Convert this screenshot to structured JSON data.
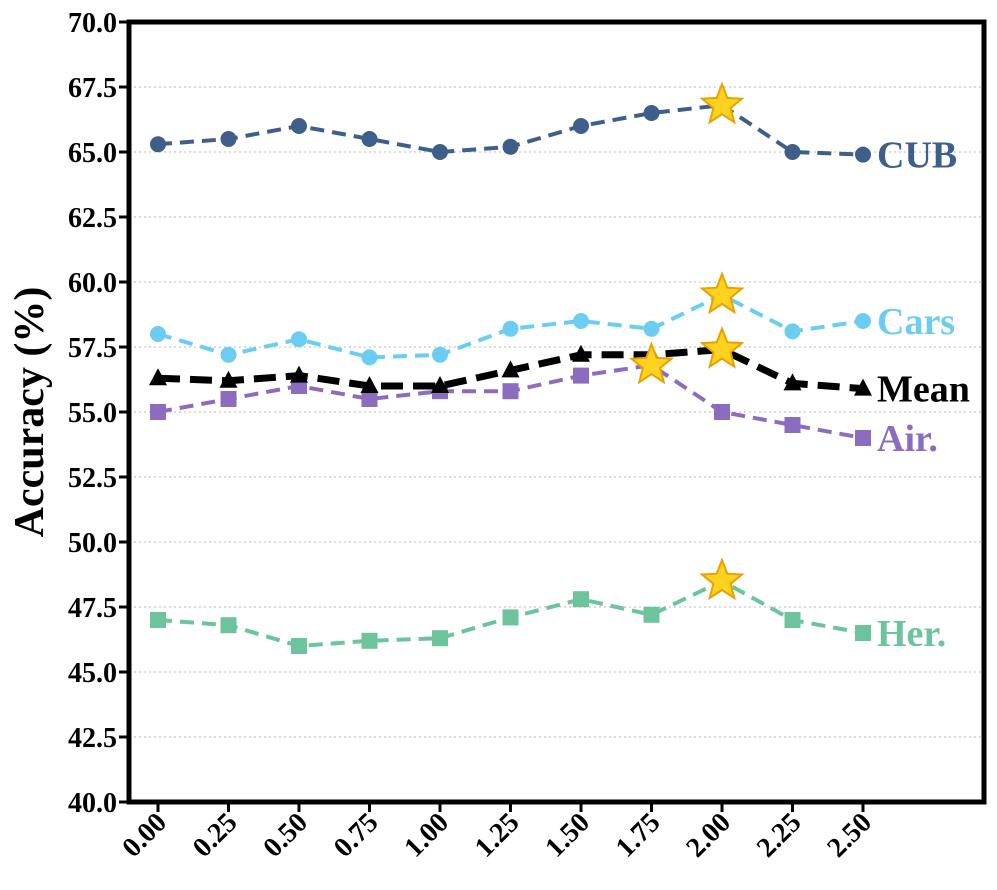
{
  "chart_data": {
    "type": "line",
    "title": "",
    "xlabel": "",
    "ylabel": "Accuracy (%)",
    "ylim": [
      40.0,
      70.0
    ],
    "yticks": [
      "40.0",
      "42.5",
      "45.0",
      "47.5",
      "50.0",
      "52.5",
      "55.0",
      "57.5",
      "60.0",
      "62.5",
      "65.0",
      "67.5",
      "70.0"
    ],
    "x": [
      0.0,
      0.25,
      0.5,
      0.75,
      1.0,
      1.25,
      1.5,
      1.75,
      2.0,
      2.25,
      2.5
    ],
    "xticks": [
      "0.00",
      "0.25",
      "0.50",
      "0.75",
      "1.00",
      "1.25",
      "1.50",
      "1.75",
      "2.00",
      "2.25",
      "2.50"
    ],
    "grid": "horizontal-dotted",
    "series": [
      {
        "name": "CUB",
        "color": "#3e5f8a",
        "marker": "circle",
        "values": [
          65.3,
          65.5,
          66.0,
          65.5,
          65.0,
          65.2,
          66.0,
          66.5,
          66.8,
          65.0,
          64.9
        ],
        "best_index": 8
      },
      {
        "name": "Cars",
        "color": "#6ccdf2",
        "marker": "circle",
        "values": [
          58.0,
          57.2,
          57.8,
          57.1,
          57.2,
          58.2,
          58.5,
          58.2,
          59.5,
          58.1,
          58.5
        ],
        "best_index": 8
      },
      {
        "name": "Mean",
        "color": "#000000",
        "marker": "triangle",
        "values": [
          56.3,
          56.2,
          56.4,
          56.0,
          56.0,
          56.6,
          57.2,
          57.2,
          57.4,
          56.1,
          55.9
        ],
        "best_index": 8
      },
      {
        "name": "Air.",
        "color": "#8b6cbf",
        "marker": "square",
        "values": [
          55.0,
          55.5,
          56.0,
          55.5,
          55.8,
          55.8,
          56.4,
          56.8,
          55.0,
          54.5,
          54.0
        ],
        "best_index": 7
      },
      {
        "name": "Her.",
        "color": "#6cc39c",
        "marker": "square",
        "values": [
          47.0,
          46.8,
          46.0,
          46.2,
          46.3,
          47.1,
          47.8,
          47.2,
          48.5,
          47.0,
          46.5
        ],
        "best_index": 8
      }
    ],
    "highlight": {
      "marker": "star",
      "fill": "#ffd21f",
      "stroke": "#e8a200"
    }
  }
}
